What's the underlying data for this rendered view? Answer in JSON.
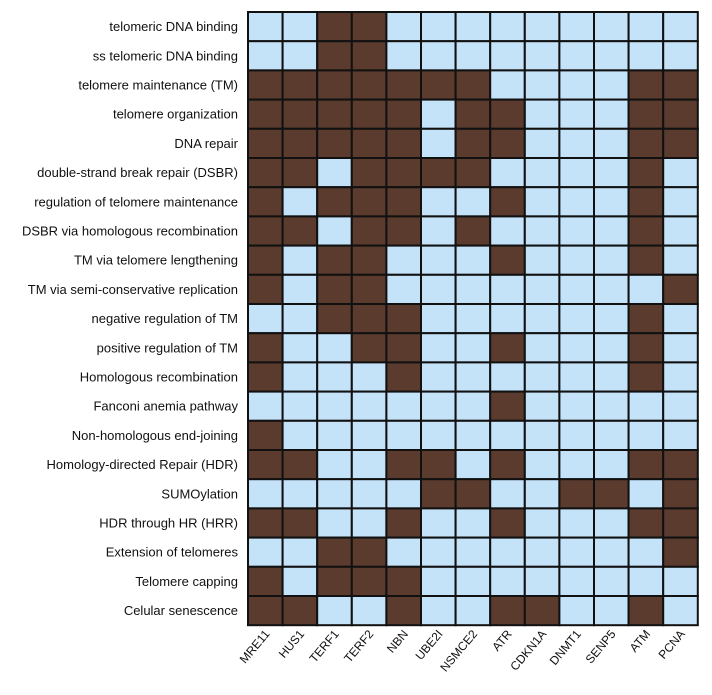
{
  "chart_data": {
    "type": "heatmap",
    "title": "",
    "xlabel": "",
    "ylabel": "",
    "colors": {
      "present": "#5a3b2e",
      "absent": "#c5e3f8",
      "border": "#111111"
    },
    "columns": [
      "MRE11",
      "HUS1",
      "TERF1",
      "TERF2",
      "NBN",
      "UBE2I",
      "NSMCE2",
      "ATR",
      "CDKN1A",
      "DNMT1",
      "SENP5",
      "ATM",
      "PCNA"
    ],
    "rows": [
      "telomeric DNA binding",
      "ss telomeric DNA binding",
      "telomere maintenance (TM)",
      "telomere organization",
      "DNA repair",
      "double-strand break repair (DSBR)",
      "regulation of telomere maintenance",
      "DSBR via homologous recombination",
      "TM via telomere lengthening",
      "TM via semi-conservative replication",
      "negative regulation of TM",
      "positive regulation of TM",
      "Homologous recombination",
      "Fanconi anemia pathway",
      "Non-homologous end-joining",
      "Homology-directed Repair (HDR)",
      "SUMOylation",
      "HDR through HR (HRR)",
      "Extension of telomeres",
      "Telomere capping",
      "Celular senescence"
    ],
    "values": [
      [
        0,
        0,
        1,
        1,
        0,
        0,
        0,
        0,
        0,
        0,
        0,
        0,
        0
      ],
      [
        0,
        0,
        1,
        1,
        0,
        0,
        0,
        0,
        0,
        0,
        0,
        0,
        0
      ],
      [
        1,
        1,
        1,
        1,
        1,
        1,
        1,
        0,
        0,
        0,
        0,
        1,
        1
      ],
      [
        1,
        1,
        1,
        1,
        1,
        0,
        1,
        1,
        0,
        0,
        0,
        1,
        1
      ],
      [
        1,
        1,
        1,
        1,
        1,
        0,
        1,
        1,
        0,
        0,
        0,
        1,
        1
      ],
      [
        1,
        1,
        0,
        1,
        1,
        1,
        1,
        0,
        0,
        0,
        0,
        1,
        0
      ],
      [
        1,
        0,
        1,
        1,
        1,
        0,
        0,
        1,
        0,
        0,
        0,
        1,
        0
      ],
      [
        1,
        1,
        0,
        1,
        1,
        0,
        1,
        0,
        0,
        0,
        0,
        1,
        0
      ],
      [
        1,
        0,
        1,
        1,
        0,
        0,
        0,
        1,
        0,
        0,
        0,
        1,
        0
      ],
      [
        1,
        0,
        1,
        1,
        0,
        0,
        0,
        0,
        0,
        0,
        0,
        0,
        1
      ],
      [
        0,
        0,
        1,
        1,
        1,
        0,
        0,
        0,
        0,
        0,
        0,
        1,
        0
      ],
      [
        1,
        0,
        0,
        1,
        1,
        0,
        0,
        1,
        0,
        0,
        0,
        1,
        0
      ],
      [
        1,
        0,
        0,
        0,
        1,
        0,
        0,
        0,
        0,
        0,
        0,
        1,
        0
      ],
      [
        0,
        0,
        0,
        0,
        0,
        0,
        0,
        1,
        0,
        0,
        0,
        0,
        0
      ],
      [
        1,
        0,
        0,
        0,
        0,
        0,
        0,
        0,
        0,
        0,
        0,
        0,
        0
      ],
      [
        1,
        1,
        0,
        0,
        1,
        1,
        0,
        1,
        0,
        0,
        0,
        1,
        1
      ],
      [
        0,
        0,
        0,
        0,
        0,
        1,
        1,
        0,
        0,
        1,
        1,
        0,
        1
      ],
      [
        1,
        1,
        0,
        0,
        1,
        0,
        0,
        1,
        0,
        0,
        0,
        1,
        1
      ],
      [
        0,
        0,
        1,
        1,
        0,
        0,
        0,
        0,
        0,
        0,
        0,
        0,
        1
      ],
      [
        1,
        0,
        1,
        1,
        1,
        0,
        0,
        0,
        0,
        0,
        0,
        0,
        0
      ],
      [
        1,
        1,
        0,
        0,
        1,
        0,
        0,
        1,
        1,
        0,
        0,
        1,
        0
      ]
    ]
  }
}
